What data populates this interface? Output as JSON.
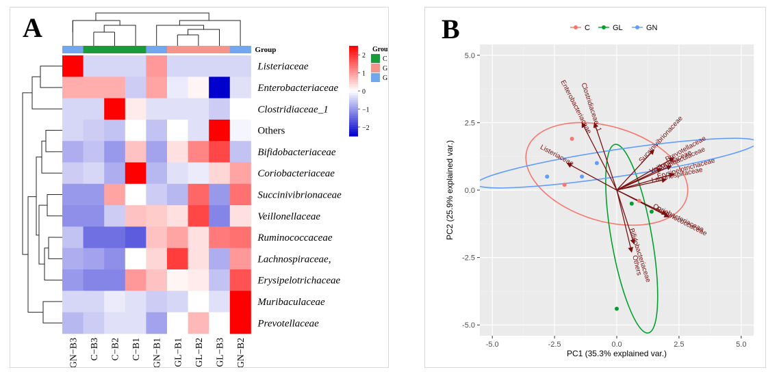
{
  "panel_a": {
    "letter": "A",
    "group_header": "Group",
    "legend": {
      "title": "Group",
      "groups": [
        {
          "label": "C",
          "color": "#1a9a3a"
        },
        {
          "label": "GL",
          "color": "#f4948a"
        },
        {
          "label": "GN",
          "color": "#72a7ef"
        }
      ],
      "colorbar_ticks": [
        2,
        1,
        0,
        -1,
        -2
      ],
      "colorbar_range": [
        -2.5,
        2.5
      ],
      "colors": {
        "high": "#ff0000",
        "mid": "#ffffff",
        "low": "#0000cc"
      }
    }
  },
  "panel_b": {
    "letter": "B",
    "legend": [
      {
        "label": "C",
        "color": "#f8766d"
      },
      {
        "label": "GL",
        "color": "#00a02c"
      },
      {
        "label": "GN",
        "color": "#619cff"
      }
    ]
  },
  "chart_data": [
    {
      "type": "heatmap",
      "title": "",
      "columns": [
        "GN−B3",
        "C−B3",
        "C−B2",
        "C−B1",
        "GN−B1",
        "GL−B1",
        "GL−B2",
        "GL−B3",
        "GN−B2"
      ],
      "column_groups": [
        "GN",
        "C",
        "C",
        "C",
        "GN",
        "GL",
        "GL",
        "GL",
        "GN"
      ],
      "rows": [
        "Listeriaceae",
        "Enterobacteriaceae",
        "Clostridiaceae_1",
        "Others",
        "Bifidobacteriaceae",
        "Coriobacteriaceae",
        "Succinivibrionaceae",
        "Veillonellaceae",
        "Ruminococcaceae",
        "Lachnospiraceae,",
        "Erysipelotrichaceae",
        "Muribaculaceae",
        "Prevotellaceae"
      ],
      "values": [
        [
          2.6,
          -0.4,
          -0.4,
          -0.4,
          1.0,
          -0.4,
          -0.4,
          -0.4,
          -0.4
        ],
        [
          0.8,
          0.8,
          0.8,
          -0.5,
          0.9,
          -0.2,
          0.1,
          -2.6,
          -0.3
        ],
        [
          -0.4,
          -0.4,
          2.6,
          0.2,
          -0.3,
          -0.3,
          -0.3,
          -0.5,
          0.0
        ],
        [
          -0.4,
          -0.5,
          -0.6,
          0.0,
          -0.6,
          0.0,
          -0.3,
          2.6,
          -0.1
        ],
        [
          -0.8,
          -0.6,
          -1.0,
          0.6,
          -0.9,
          0.3,
          1.2,
          1.8,
          -0.6
        ],
        [
          -0.5,
          -0.4,
          -0.8,
          2.6,
          -0.7,
          -0.3,
          -0.2,
          0.4,
          0.9
        ],
        [
          -1.0,
          -1.0,
          0.9,
          0.0,
          -0.5,
          -0.7,
          1.5,
          -1.0,
          1.4
        ],
        [
          -1.1,
          -1.1,
          -0.5,
          0.6,
          0.5,
          0.3,
          1.8,
          -1.2,
          0.3
        ],
        [
          -0.6,
          -1.4,
          -1.4,
          -1.6,
          0.6,
          0.9,
          0.3,
          1.3,
          1.4
        ],
        [
          -0.8,
          -0.9,
          -1.1,
          0.0,
          0.4,
          1.9,
          0.3,
          -0.8,
          1.0
        ],
        [
          -1.0,
          -1.2,
          -1.2,
          1.0,
          0.6,
          0.1,
          0.2,
          -0.6,
          1.7
        ],
        [
          -0.4,
          -0.4,
          -0.2,
          -0.3,
          -0.5,
          -0.4,
          0.0,
          -0.3,
          2.6
        ],
        [
          -0.7,
          -0.5,
          -0.3,
          -0.3,
          -0.9,
          0.0,
          0.7,
          0.0,
          2.6
        ]
      ]
    },
    {
      "type": "scatter",
      "title": "",
      "xlabel": "PC1 (35.3% explained var.)",
      "ylabel": "PC2 (25.9% explained var.)",
      "xlim": [
        -5.5,
        5.5
      ],
      "ylim": [
        -5.4,
        5.4
      ],
      "xticks": [
        "-5.0",
        "-2.5",
        "0.0",
        "2.5",
        "5.0"
      ],
      "yticks": [
        "5.0",
        "2.5",
        "0.0",
        "-2.5",
        "-5.0"
      ],
      "grid": true,
      "legend_position": "top",
      "series": [
        {
          "name": "C",
          "points": [
            [
              -1.8,
              1.9
            ],
            [
              -2.1,
              0.2
            ],
            [
              0.9,
              -0.4
            ]
          ]
        },
        {
          "name": "GL",
          "points": [
            [
              0.6,
              -0.5
            ],
            [
              1.4,
              -0.8
            ],
            [
              0.0,
              -4.4
            ]
          ]
        },
        {
          "name": "GN",
          "points": [
            [
              -0.8,
              1.0
            ],
            [
              -2.8,
              0.5
            ],
            [
              -1.4,
              0.5
            ]
          ]
        }
      ],
      "ellipses": [
        {
          "group": "C",
          "cx": -0.4,
          "cy": 0.6,
          "rx": 3.35,
          "ry": 1.75,
          "angle_deg": -17
        },
        {
          "group": "GL",
          "cx": 0.6,
          "cy": -1.8,
          "rx": 3.85,
          "ry": 0.75,
          "angle_deg": -80
        },
        {
          "group": "GN",
          "cx": 0.0,
          "cy": 1.0,
          "rx": 5.7,
          "ry": 0.5,
          "angle_deg": 8.5
        }
      ],
      "loadings": [
        {
          "label": "Enterobacteriaceae",
          "x": -1.4,
          "y": 2.5
        },
        {
          "label": "Clostridiaceae_1",
          "x": -0.9,
          "y": 2.5
        },
        {
          "label": "Listeriaceae",
          "x": -2.0,
          "y": 1.0
        },
        {
          "label": "Succinivibrionaceae",
          "x": 1.5,
          "y": 1.5
        },
        {
          "label": "Veillonellaceae",
          "x": 1.8,
          "y": 0.8
        },
        {
          "label": "Prevotellaceae",
          "x": 2.3,
          "y": 1.2
        },
        {
          "label": "Muribaculaceae",
          "x": 2.2,
          "y": 0.9
        },
        {
          "label": "Erysipelotrichaceae",
          "x": 2.3,
          "y": 0.6
        },
        {
          "label": "Lachnospiraceae",
          "x": 2.0,
          "y": 0.4
        },
        {
          "label": "Coriobacteriaceae",
          "x": 2.0,
          "y": -0.9
        },
        {
          "label": "Ruminococcaceae",
          "x": 2.1,
          "y": -1.0
        },
        {
          "label": "Others",
          "x": 0.6,
          "y": -2.3
        },
        {
          "label": "Bifidobacteriaceae",
          "x": 0.7,
          "y": -2.0
        }
      ]
    }
  ]
}
